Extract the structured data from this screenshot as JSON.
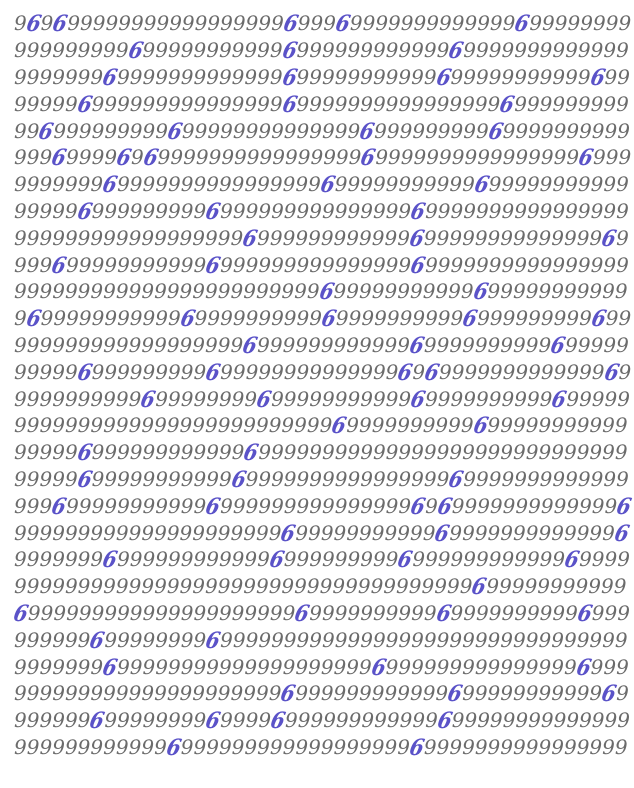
{
  "rows": [
    "969699999999999999999699969999999999999699999999",
    "999999999699999999999699999999999969999999999999",
    "999999969999999999999699999999999699999999999699",
    "999996999999999999999699999999999999996999999999",
    "996999999999699999999999999699999999969999999999",
    "999699996969999999999999999699999999999999996999",
    "999999969999999999999999699999999999699999999999",
    "999996999999999699999999999999969999999999999999",
    "999999999999999999699999999999969999999999999969",
    "999699999999999699999999999999969999999999999999",
    "999999999999999999999999699999999999699999999999",
    "969999999999969999999999699999999996999999999699",
    "999999999999999999699999999999969999999999699999",
    "999996999999999699999999999999696999999999999969",
    "999999999969999999969999999999969999999999699999",
    "999999999999999999999999969999999999699999999999",
    "999996999999999999699999999999999999999999999999",
    "999996999999999996999999999999999969999999999999",
    "999699999999999699999999999999969699999999999996",
    "999999999999999999999699999999999699999999999996",
    "999999969999999999996999999999699999999999969999",
    "999999999999999999999999999999999999699999999999",
    "699999999999999999999969999999999699999999996999",
    "999999699999999699999999999999999999999999999999",
    "999999969999999999999999999969999999999999996999",
    "999999999999999999999699999999999969999999999969",
    "999999699999999699996999999999999699999999999999",
    "999999999999699999999999999999969999999999999999"
  ],
  "colors": {
    "ink": "#6b6b6b",
    "highlight": "#5a52c8",
    "background": "#ffffff"
  }
}
